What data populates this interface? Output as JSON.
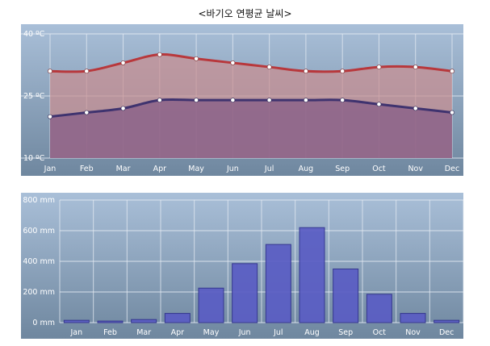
{
  "title": "<바기오 연평균 날씨>",
  "colors": {
    "high_line": "#b8383c",
    "low_line": "#3f336f",
    "high_fill": "#c98f92",
    "low_fill": "#8a6088",
    "bar_fill": "#5a5dc4",
    "bar_stroke": "#2e2f8c",
    "grid": "#e6ecf4"
  },
  "chart_data": [
    {
      "type": "line",
      "categories": [
        "Jan",
        "Feb",
        "Mar",
        "Apr",
        "May",
        "Jun",
        "Jul",
        "Aug",
        "Sep",
        "Oct",
        "Nov",
        "Dec"
      ],
      "series": [
        {
          "values": [
            31,
            31,
            33,
            35,
            34,
            33,
            32,
            31,
            31,
            32,
            32,
            31
          ]
        },
        {
          "values": [
            20,
            21,
            22,
            24,
            24,
            24,
            24,
            24,
            24,
            23,
            22,
            21
          ]
        }
      ],
      "yticks": [
        "40 ºC",
        "25 ºC",
        "10 ºC"
      ],
      "ylim": [
        10,
        40
      ],
      "grid": true
    },
    {
      "type": "bar",
      "categories": [
        "Jan",
        "Feb",
        "Mar",
        "Apr",
        "May",
        "Jun",
        "Jul",
        "Aug",
        "Sep",
        "Oct",
        "Nov",
        "Dec"
      ],
      "values": [
        15,
        10,
        20,
        60,
        225,
        385,
        510,
        620,
        350,
        185,
        60,
        15
      ],
      "yticks": [
        "800 mm",
        "600 mm",
        "400 mm",
        "200 mm",
        "0 mm"
      ],
      "ylim": [
        0,
        800
      ],
      "grid": true
    }
  ]
}
